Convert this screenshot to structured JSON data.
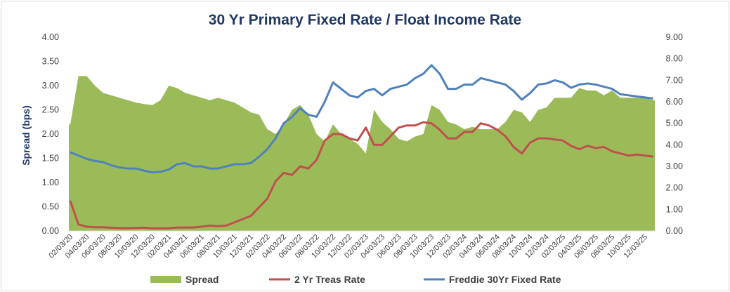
{
  "chart_data": {
    "type": "line",
    "title": "30 Yr Primary Fixed Rate / Float Income Rate",
    "ylabel": "Spread (bps)",
    "ylim": [
      0,
      4
    ],
    "y2lim": [
      0,
      9
    ],
    "yticks": [
      "0.00",
      "0.50",
      "1.00",
      "1.50",
      "2.00",
      "2.50",
      "3.00",
      "3.50",
      "4.00"
    ],
    "y2ticks": [
      "0.00",
      "1.00",
      "2.00",
      "3.00",
      "4.00",
      "5.00",
      "6.00",
      "7.00",
      "8.00",
      "9.00"
    ],
    "xticks": [
      "02/03/20",
      "04/03/20",
      "06/03/20",
      "08/03/20",
      "10/03/20",
      "12/03/20",
      "02/03/21",
      "04/03/21",
      "06/03/21",
      "08/03/21",
      "10/03/21",
      "12/03/21",
      "02/03/22",
      "04/03/22",
      "06/03/22",
      "08/03/22",
      "10/03/22",
      "12/03/22",
      "02/03/23",
      "04/03/23",
      "06/03/23",
      "08/03/23",
      "10/03/23",
      "12/03/23",
      "02/03/24",
      "04/03/24",
      "06/03/24",
      "08/03/24",
      "10/03/24",
      "12/03/24",
      "02/03/25",
      "04/03/25",
      "06/03/25",
      "08/03/25",
      "10/03/25",
      "12/03/25"
    ],
    "x": [
      "02/20",
      "03/20",
      "04/20",
      "05/20",
      "06/20",
      "07/20",
      "08/20",
      "09/20",
      "10/20",
      "11/20",
      "12/20",
      "01/21",
      "02/21",
      "03/21",
      "04/21",
      "05/21",
      "06/21",
      "07/21",
      "08/21",
      "09/21",
      "10/21",
      "11/21",
      "12/21",
      "01/22",
      "02/22",
      "03/22",
      "04/22",
      "05/22",
      "06/22",
      "07/22",
      "08/22",
      "09/22",
      "10/22",
      "11/22",
      "12/22",
      "01/23",
      "02/23",
      "03/23",
      "04/23",
      "05/23",
      "06/23",
      "07/23",
      "08/23",
      "09/23",
      "10/23",
      "11/23",
      "12/23",
      "01/24",
      "02/24",
      "03/24",
      "04/24",
      "05/24",
      "06/24",
      "07/24",
      "08/24",
      "09/24",
      "10/24",
      "11/24",
      "12/24",
      "01/25",
      "02/25",
      "03/25",
      "04/25",
      "05/25",
      "06/25",
      "07/25",
      "08/25",
      "09/25",
      "10/25",
      "11/25",
      "12/25",
      "01/26"
    ],
    "legend_position": "bottom",
    "grid": false,
    "series": [
      {
        "name": "Spread",
        "type": "area",
        "axis": "left",
        "color": "#9bbb59",
        "values": [
          2.2,
          3.2,
          3.2,
          3.0,
          2.85,
          2.8,
          2.75,
          2.7,
          2.65,
          2.62,
          2.6,
          2.7,
          3.0,
          2.95,
          2.85,
          2.8,
          2.75,
          2.7,
          2.75,
          2.7,
          2.65,
          2.55,
          2.45,
          2.4,
          2.1,
          2.0,
          2.2,
          2.5,
          2.6,
          2.4,
          2.0,
          1.85,
          2.2,
          2.0,
          1.9,
          1.8,
          1.6,
          2.5,
          2.25,
          2.1,
          1.9,
          1.85,
          1.95,
          2.0,
          2.6,
          2.5,
          2.25,
          2.2,
          2.1,
          2.15,
          2.1,
          2.1,
          2.1,
          2.25,
          2.5,
          2.45,
          2.25,
          2.5,
          2.55,
          2.75,
          2.75,
          2.75,
          2.95,
          2.9,
          2.9,
          2.8,
          2.9,
          2.75,
          2.75,
          2.75,
          2.75,
          2.7
        ]
      },
      {
        "name": "2 Yr Treas Rate",
        "type": "line",
        "axis": "right",
        "color": "#c0504d",
        "values": [
          1.4,
          0.3,
          0.2,
          0.17,
          0.17,
          0.15,
          0.13,
          0.13,
          0.14,
          0.15,
          0.12,
          0.12,
          0.12,
          0.16,
          0.16,
          0.16,
          0.2,
          0.25,
          0.22,
          0.25,
          0.4,
          0.55,
          0.7,
          1.1,
          1.5,
          2.3,
          2.7,
          2.6,
          3.0,
          2.9,
          3.3,
          4.2,
          4.5,
          4.5,
          4.3,
          4.2,
          4.8,
          4.0,
          4.0,
          4.4,
          4.8,
          4.9,
          4.9,
          5.05,
          5.0,
          4.7,
          4.3,
          4.3,
          4.6,
          4.6,
          5.0,
          4.9,
          4.7,
          4.4,
          3.9,
          3.6,
          4.1,
          4.3,
          4.3,
          4.25,
          4.2,
          3.95,
          3.8,
          3.95,
          3.85,
          3.9,
          3.7,
          3.6,
          3.5,
          3.55,
          3.5,
          3.45
        ]
      },
      {
        "name": "Freddie 30Yr Fixed Rate",
        "type": "line",
        "axis": "right",
        "color": "#4f81bd",
        "values": [
          3.65,
          3.5,
          3.35,
          3.25,
          3.2,
          3.05,
          2.95,
          2.9,
          2.9,
          2.8,
          2.72,
          2.75,
          2.85,
          3.1,
          3.15,
          3.0,
          3.0,
          2.9,
          2.9,
          3.0,
          3.1,
          3.1,
          3.15,
          3.45,
          3.8,
          4.3,
          5.0,
          5.3,
          5.7,
          5.4,
          5.3,
          6.0,
          6.9,
          6.6,
          6.3,
          6.2,
          6.5,
          6.6,
          6.3,
          6.6,
          6.7,
          6.8,
          7.1,
          7.3,
          7.7,
          7.3,
          6.6,
          6.6,
          6.8,
          6.8,
          7.1,
          7.0,
          6.9,
          6.8,
          6.5,
          6.1,
          6.4,
          6.8,
          6.85,
          7.0,
          6.9,
          6.65,
          6.8,
          6.85,
          6.8,
          6.7,
          6.6,
          6.35,
          6.3,
          6.25,
          6.2,
          6.15
        ]
      }
    ]
  }
}
